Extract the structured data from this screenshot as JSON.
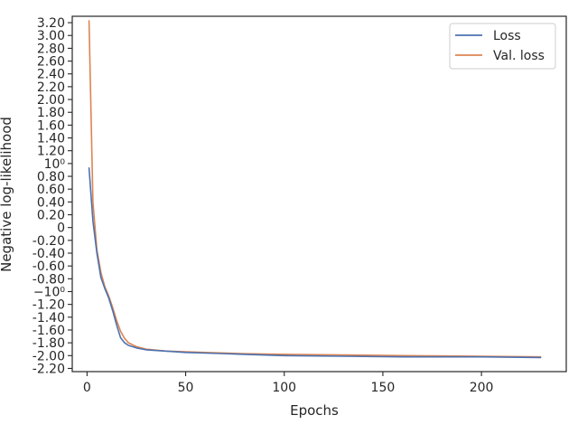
{
  "chart_data": {
    "type": "line",
    "xlabel": "Epochs",
    "ylabel": "Negative log-likelihood",
    "xlim": [
      -7.5,
      243
    ],
    "ylim": [
      -2.25,
      3.3
    ],
    "x_ticks": [
      0,
      50,
      100,
      150,
      200
    ],
    "x_tick_labels": [
      "0",
      "50",
      "100",
      "150",
      "200"
    ],
    "y_ticks": [
      -2.2,
      -2.0,
      -1.8,
      -1.6,
      -1.4,
      -1.2,
      -1.0,
      -0.8,
      -0.6,
      -0.4,
      -0.2,
      0,
      0.2,
      0.4,
      0.6,
      0.8,
      1.0,
      1.2,
      1.4,
      1.6,
      1.8,
      2.0,
      2.2,
      2.4,
      2.6,
      2.8,
      3.0,
      3.2
    ],
    "y_tick_labels": [
      "-2.20",
      "-2.00",
      "-1.80",
      "-1.60",
      "-1.40",
      "-1.20",
      "−10⁰",
      "-0.80",
      "-0.60",
      "-0.40",
      "-0.20",
      "0",
      "0.20",
      "0.40",
      "0.60",
      "0.80",
      "10⁰",
      "1.20",
      "1.40",
      "1.60",
      "1.80",
      "2.00",
      "2.20",
      "2.40",
      "2.60",
      "2.80",
      "3.00",
      "3.20"
    ],
    "grid": false,
    "legend_position": "top-right",
    "series": [
      {
        "name": "Loss",
        "color": "#4c72b0",
        "x": [
          1,
          3,
          5,
          7,
          9,
          11,
          13,
          15,
          17,
          19,
          21,
          25,
          30,
          40,
          50,
          60,
          80,
          100,
          130,
          160,
          200,
          230
        ],
        "y": [
          0.93,
          0.1,
          -0.4,
          -0.78,
          -0.95,
          -1.1,
          -1.3,
          -1.52,
          -1.72,
          -1.8,
          -1.84,
          -1.88,
          -1.91,
          -1.93,
          -1.95,
          -1.96,
          -1.98,
          -2.0,
          -2.01,
          -2.02,
          -2.02,
          -2.03
        ]
      },
      {
        "name": "Val. loss",
        "color": "#dd8452",
        "x": [
          1,
          3,
          5,
          7,
          9,
          11,
          13,
          15,
          17,
          19,
          21,
          25,
          30,
          40,
          50,
          60,
          80,
          100,
          130,
          160,
          200,
          230
        ],
        "y": [
          3.23,
          0.4,
          -0.35,
          -0.7,
          -0.92,
          -1.07,
          -1.25,
          -1.45,
          -1.62,
          -1.73,
          -1.8,
          -1.86,
          -1.9,
          -1.93,
          -1.94,
          -1.95,
          -1.97,
          -1.98,
          -1.99,
          -2.0,
          -2.01,
          -2.02
        ]
      }
    ]
  }
}
